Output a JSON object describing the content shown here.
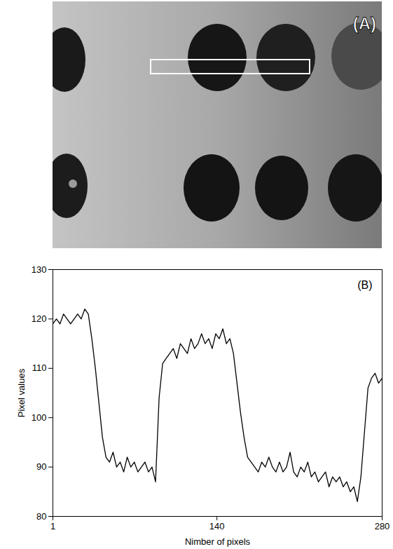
{
  "image_panel": {
    "label": "(A)"
  },
  "chart_data": {
    "type": "line",
    "annotations": [
      "(B)"
    ],
    "x_label": "Nimber of pixels",
    "y_label": "Pixel values",
    "xlim": [
      1,
      280
    ],
    "xticks": [
      1,
      140,
      280
    ],
    "ylim": [
      80,
      130
    ],
    "yticks": [
      80,
      90,
      100,
      110,
      120,
      130
    ],
    "grid": false,
    "color": "#000000",
    "x": [
      1,
      4,
      7,
      10,
      13,
      16,
      19,
      22,
      25,
      28,
      31,
      34,
      37,
      40,
      43,
      46,
      49,
      52,
      55,
      58,
      61,
      64,
      67,
      70,
      73,
      76,
      79,
      82,
      85,
      88,
      91,
      94,
      97,
      100,
      103,
      106,
      109,
      112,
      115,
      118,
      121,
      124,
      127,
      130,
      133,
      136,
      139,
      142,
      145,
      148,
      151,
      154,
      157,
      160,
      163,
      166,
      169,
      172,
      175,
      178,
      181,
      184,
      187,
      190,
      193,
      196,
      199,
      202,
      205,
      208,
      211,
      214,
      217,
      220,
      223,
      226,
      229,
      232,
      235,
      238,
      241,
      244,
      247,
      250,
      253,
      256,
      259,
      262,
      265,
      268,
      271,
      274,
      277,
      280
    ],
    "values": [
      119,
      120,
      119,
      121,
      120,
      119,
      120,
      121,
      120,
      122,
      121,
      116,
      110,
      103,
      96,
      92,
      91,
      93,
      90,
      91,
      89,
      92,
      90,
      91,
      89,
      90,
      91,
      89,
      90,
      87,
      104,
      111,
      112,
      113,
      114,
      112,
      115,
      114,
      113,
      116,
      114,
      115,
      117,
      115,
      116,
      114,
      117,
      116,
      118,
      115,
      116,
      113,
      107,
      101,
      96,
      92,
      91,
      90,
      89,
      91,
      90,
      92,
      90,
      89,
      91,
      89,
      90,
      93,
      89,
      88,
      90,
      89,
      91,
      88,
      89,
      87,
      88,
      89,
      86,
      88,
      87,
      88,
      86,
      87,
      85,
      86,
      83,
      88,
      97,
      106,
      108,
      109,
      107,
      108
    ]
  }
}
